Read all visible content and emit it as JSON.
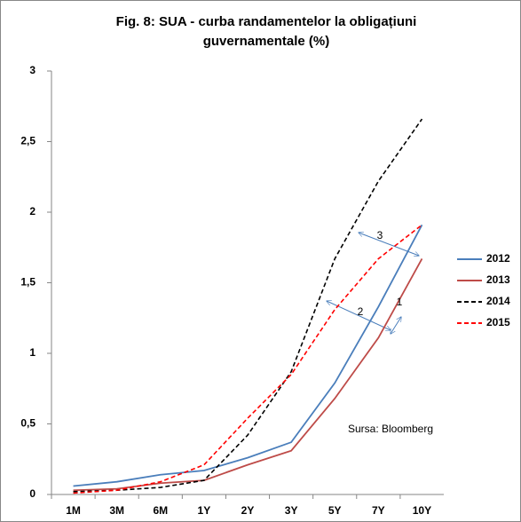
{
  "chart_data": {
    "type": "line",
    "title": "Fig. 8: SUA - curba randamentelor la obligațiuni guvernamentale (%)",
    "categories": [
      "1M",
      "3M",
      "6M",
      "1Y",
      "2Y",
      "3Y",
      "5Y",
      "7Y",
      "10Y"
    ],
    "series": [
      {
        "name": "2012",
        "color": "#4a7ebb",
        "dashed": false,
        "values": [
          0.06,
          0.09,
          0.14,
          0.17,
          0.26,
          0.37,
          0.79,
          1.33,
          1.91
        ]
      },
      {
        "name": "2013",
        "color": "#be4b48",
        "dashed": false,
        "values": [
          0.03,
          0.04,
          0.08,
          0.1,
          0.21,
          0.31,
          0.68,
          1.11,
          1.67
        ]
      },
      {
        "name": "2014",
        "color": "#000000",
        "dashed": true,
        "values": [
          0.02,
          0.03,
          0.05,
          0.1,
          0.42,
          0.87,
          1.67,
          2.22,
          2.66
        ]
      },
      {
        "name": "2015",
        "color": "#ff0000",
        "dashed": true,
        "values": [
          0.01,
          0.03,
          0.09,
          0.21,
          0.54,
          0.85,
          1.31,
          1.67,
          1.91
        ]
      }
    ],
    "ylim": [
      0,
      3
    ],
    "yticks": [
      0,
      {
        "value": 0.5,
        "label": "0,5"
      },
      1,
      {
        "value": 1.5,
        "label": "1,5"
      },
      2,
      {
        "value": 2.5,
        "label": "2,5"
      },
      3
    ],
    "grid": false,
    "legend": "right",
    "annotations": [
      "1",
      "2",
      "3",
      "Sursa: Bloomberg"
    ]
  }
}
